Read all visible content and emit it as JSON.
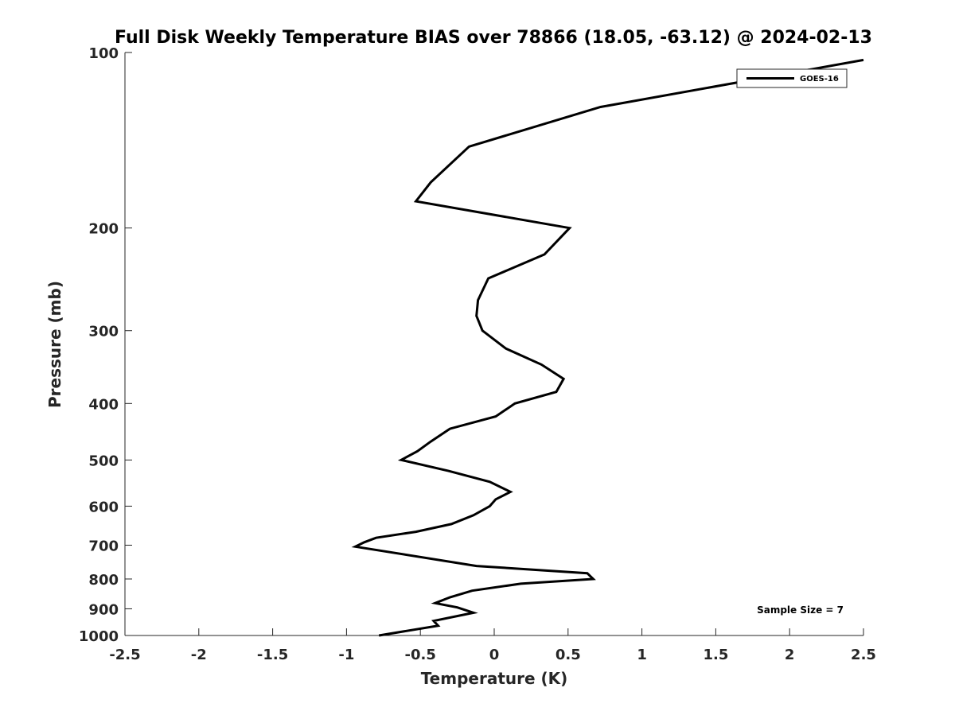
{
  "chart_data": {
    "type": "line",
    "title": "Full Disk Weekly Temperature BIAS over 78866 (18.05, -63.12) @ 2024-02-13",
    "xlabel": "Temperature (K)",
    "ylabel": "Pressure (mb)",
    "xlim": [
      -2.5,
      2.5
    ],
    "ylim": [
      1000,
      100
    ],
    "yscale": "log",
    "y_reversed": true,
    "grid": false,
    "x_ticks": [
      -2.5,
      -2,
      -1.5,
      -1,
      -0.5,
      0,
      0.5,
      1,
      1.5,
      2,
      2.5
    ],
    "x_tick_labels": [
      "-2.5",
      "-2",
      "-1.5",
      "-1",
      "-0.5",
      "0",
      "0.5",
      "1",
      "1.5",
      "2",
      "2.5"
    ],
    "y_ticks": [
      100,
      200,
      300,
      400,
      500,
      600,
      700,
      800,
      900,
      1000
    ],
    "y_tick_labels": [
      "100",
      "200",
      "300",
      "400",
      "500",
      "600",
      "700",
      "800",
      "900",
      "1000"
    ],
    "legend": {
      "position": "top-right"
    },
    "annotation": "Sample Size = 7",
    "series": [
      {
        "name": "GOES-16",
        "color": "#000000",
        "points": [
          {
            "x": 2.5,
            "y": 103
          },
          {
            "x": 0.72,
            "y": 124
          },
          {
            "x": -0.17,
            "y": 145
          },
          {
            "x": -0.43,
            "y": 167
          },
          {
            "x": -0.53,
            "y": 180
          },
          {
            "x": 0.51,
            "y": 200
          },
          {
            "x": 0.34,
            "y": 222
          },
          {
            "x": -0.04,
            "y": 244
          },
          {
            "x": -0.11,
            "y": 266
          },
          {
            "x": -0.12,
            "y": 283
          },
          {
            "x": -0.08,
            "y": 300
          },
          {
            "x": 0.08,
            "y": 322
          },
          {
            "x": 0.32,
            "y": 343
          },
          {
            "x": 0.47,
            "y": 363
          },
          {
            "x": 0.42,
            "y": 382
          },
          {
            "x": 0.14,
            "y": 400
          },
          {
            "x": 0.01,
            "y": 421
          },
          {
            "x": -0.3,
            "y": 442
          },
          {
            "x": -0.43,
            "y": 465
          },
          {
            "x": -0.52,
            "y": 483
          },
          {
            "x": -0.63,
            "y": 500
          },
          {
            "x": -0.31,
            "y": 522
          },
          {
            "x": -0.03,
            "y": 545
          },
          {
            "x": 0.11,
            "y": 567
          },
          {
            "x": 0.01,
            "y": 584
          },
          {
            "x": -0.03,
            "y": 600
          },
          {
            "x": -0.14,
            "y": 622
          },
          {
            "x": -0.29,
            "y": 644
          },
          {
            "x": -0.53,
            "y": 664
          },
          {
            "x": -0.8,
            "y": 680
          },
          {
            "x": -0.88,
            "y": 692
          },
          {
            "x": -0.94,
            "y": 704
          },
          {
            "x": -0.12,
            "y": 760
          },
          {
            "x": 0.63,
            "y": 782
          },
          {
            "x": 0.67,
            "y": 800
          },
          {
            "x": 0.18,
            "y": 815
          },
          {
            "x": -0.15,
            "y": 838
          },
          {
            "x": -0.3,
            "y": 860
          },
          {
            "x": -0.4,
            "y": 880
          },
          {
            "x": -0.25,
            "y": 895
          },
          {
            "x": -0.14,
            "y": 914
          },
          {
            "x": -0.41,
            "y": 944
          },
          {
            "x": -0.38,
            "y": 962
          },
          {
            "x": -0.78,
            "y": 1000
          }
        ]
      }
    ]
  }
}
